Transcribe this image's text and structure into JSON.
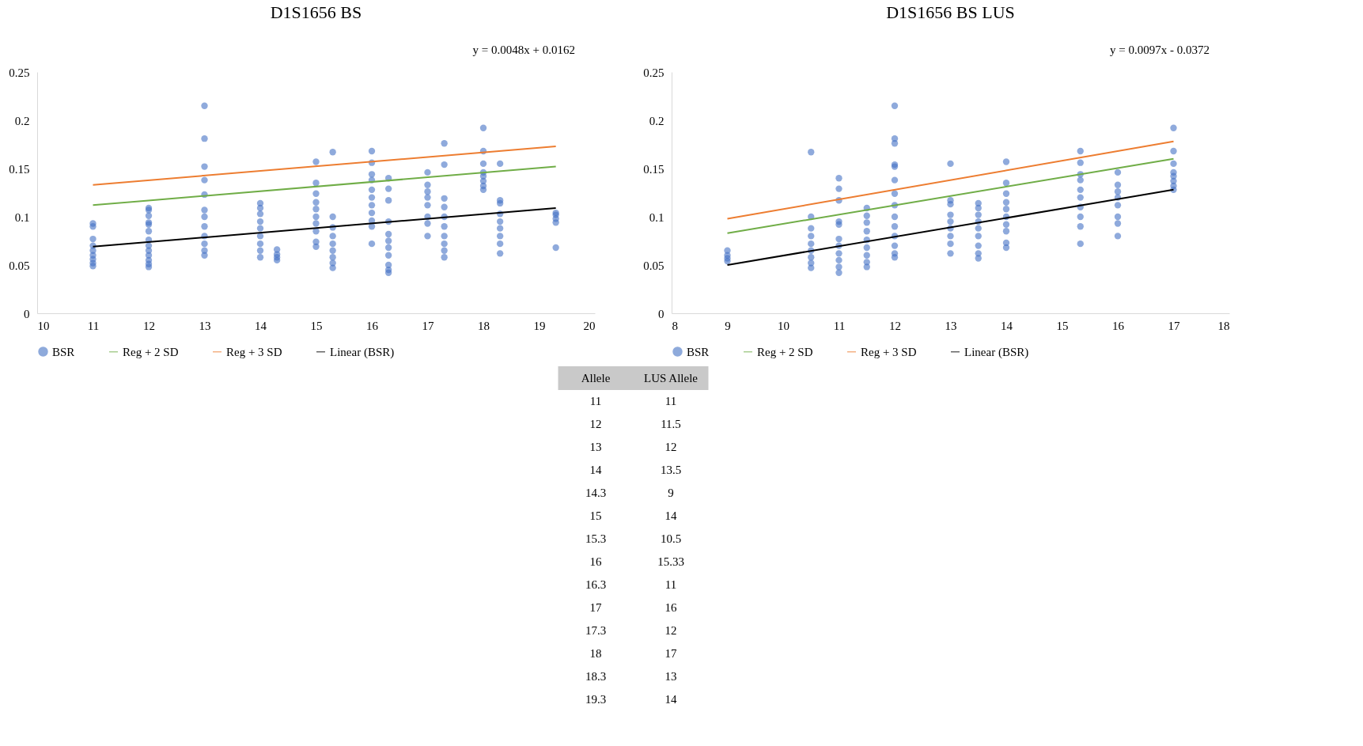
{
  "chart_data": [
    {
      "type": "scatter",
      "title": "D1S1656 BS",
      "annotations": [
        "y = 0.0048x + 0.0162"
      ],
      "xlim": [
        10,
        20
      ],
      "xticks": [
        10,
        11,
        12,
        13,
        14,
        15,
        16,
        17,
        18,
        19,
        20
      ],
      "ylim": [
        0,
        0.25
      ],
      "yticks": [
        0,
        0.05,
        0.1,
        0.15,
        0.2,
        0.25
      ],
      "legend": "bottom",
      "series": [
        {
          "name": "BSR",
          "type": "scatter",
          "marker": "circle",
          "color": "#4472c4",
          "x": [
            11,
            11,
            11,
            11,
            11,
            11,
            11,
            11,
            11,
            12,
            12,
            12,
            12,
            12,
            12,
            12,
            12,
            12,
            12,
            12,
            12,
            12,
            13,
            13,
            13,
            13,
            13,
            13,
            13,
            13,
            13,
            13,
            13,
            13,
            14,
            14,
            14,
            14,
            14,
            14,
            14,
            14,
            14,
            14.3,
            14.3,
            14.3,
            14.3,
            15,
            15,
            15,
            15,
            15,
            15,
            15,
            15,
            15,
            15,
            15.3,
            15.3,
            15.3,
            15.3,
            15.3,
            15.3,
            15.3,
            15.3,
            15.3,
            16,
            16,
            16,
            16,
            16,
            16,
            16,
            16,
            16,
            16,
            16,
            16.3,
            16.3,
            16.3,
            16.3,
            16.3,
            16.3,
            16.3,
            16.3,
            16.3,
            16.3,
            16.3,
            17,
            17,
            17,
            17,
            17,
            17,
            17,
            17,
            17.3,
            17.3,
            17.3,
            17.3,
            17.3,
            17.3,
            17.3,
            17.3,
            17.3,
            17.3,
            18,
            18,
            18,
            18,
            18,
            18,
            18,
            18,
            18.3,
            18.3,
            18.3,
            18.3,
            18.3,
            18.3,
            18.3,
            18.3,
            18.3,
            19.3,
            19.3,
            19.3,
            19.3,
            19.3
          ],
          "values": [
            0.093,
            0.09,
            0.077,
            0.07,
            0.065,
            0.06,
            0.056,
            0.052,
            0.049,
            0.109,
            0.107,
            0.101,
            0.094,
            0.092,
            0.085,
            0.076,
            0.07,
            0.065,
            0.06,
            0.055,
            0.051,
            0.048,
            0.215,
            0.181,
            0.152,
            0.138,
            0.123,
            0.107,
            0.1,
            0.09,
            0.08,
            0.072,
            0.065,
            0.06,
            0.114,
            0.109,
            0.103,
            0.095,
            0.088,
            0.08,
            0.072,
            0.065,
            0.058,
            0.066,
            0.061,
            0.058,
            0.055,
            0.157,
            0.135,
            0.124,
            0.115,
            0.108,
            0.1,
            0.093,
            0.085,
            0.074,
            0.069,
            0.167,
            0.1,
            0.089,
            0.08,
            0.072,
            0.065,
            0.058,
            0.052,
            0.047,
            0.168,
            0.156,
            0.144,
            0.138,
            0.128,
            0.12,
            0.112,
            0.104,
            0.096,
            0.09,
            0.072,
            0.14,
            0.129,
            0.117,
            0.095,
            0.082,
            0.075,
            0.068,
            0.06,
            0.05,
            0.045,
            0.042,
            0.146,
            0.133,
            0.126,
            0.12,
            0.112,
            0.1,
            0.093,
            0.08,
            0.176,
            0.154,
            0.119,
            0.11,
            0.1,
            0.09,
            0.08,
            0.072,
            0.065,
            0.058,
            0.192,
            0.168,
            0.155,
            0.146,
            0.142,
            0.137,
            0.132,
            0.128,
            0.155,
            0.117,
            0.114,
            0.103,
            0.095,
            0.088,
            0.08,
            0.072,
            0.062,
            0.104,
            0.102,
            0.098,
            0.094,
            0.068
          ]
        },
        {
          "name": "Reg + 2 SD",
          "type": "line",
          "marker": "none",
          "color": "#70ad47",
          "x": [
            11,
            19.3
          ],
          "values": [
            0.112,
            0.152
          ]
        },
        {
          "name": "Reg + 3 SD",
          "type": "line",
          "marker": "none",
          "color": "#ed7d31",
          "x": [
            11,
            19.3
          ],
          "values": [
            0.133,
            0.173
          ]
        },
        {
          "name": "Linear (BSR)",
          "type": "line",
          "marker": "none",
          "color": "#000000",
          "x": [
            11,
            19.3
          ],
          "values": [
            0.069,
            0.109
          ]
        }
      ]
    },
    {
      "type": "scatter",
      "title": "D1S1656 BS LUS",
      "annotations": [
        "y = 0.0097x  - 0.0372"
      ],
      "xlim": [
        8,
        18
      ],
      "xticks": [
        8,
        9,
        10,
        11,
        12,
        13,
        14,
        15,
        16,
        17,
        18
      ],
      "ylim": [
        0,
        0.25
      ],
      "yticks": [
        0,
        0.05,
        0.1,
        0.15,
        0.2,
        0.25
      ],
      "legend": "bottom",
      "series": [
        {
          "name": "BSR",
          "type": "scatter",
          "marker": "circle",
          "color": "#4472c4",
          "x": [
            9,
            9,
            9,
            9,
            10.5,
            10.5,
            10.5,
            10.5,
            10.5,
            10.5,
            10.5,
            10.5,
            10.5,
            11,
            11,
            11,
            11,
            11,
            11,
            11,
            11,
            11,
            11,
            11,
            11.5,
            11.5,
            11.5,
            11.5,
            11.5,
            11.5,
            11.5,
            11.5,
            11.5,
            12,
            12,
            12,
            12,
            12,
            12,
            12,
            12,
            12,
            12,
            12,
            12,
            12,
            12,
            13,
            13,
            13,
            13,
            13,
            13,
            13,
            13,
            13,
            13.5,
            13.5,
            13.5,
            13.5,
            13.5,
            13.5,
            13.5,
            13.5,
            13.5,
            14,
            14,
            14,
            14,
            14,
            14,
            14,
            14,
            14,
            14,
            15.33,
            15.33,
            15.33,
            15.33,
            15.33,
            15.33,
            15.33,
            15.33,
            15.33,
            15.33,
            16,
            16,
            16,
            16,
            16,
            16,
            16,
            16,
            17,
            17,
            17,
            17,
            17,
            17,
            17,
            17
          ],
          "values": [
            0.065,
            0.06,
            0.057,
            0.054,
            0.167,
            0.1,
            0.088,
            0.08,
            0.072,
            0.065,
            0.058,
            0.052,
            0.047,
            0.14,
            0.129,
            0.117,
            0.095,
            0.092,
            0.077,
            0.07,
            0.062,
            0.055,
            0.048,
            0.042,
            0.109,
            0.101,
            0.094,
            0.085,
            0.076,
            0.068,
            0.06,
            0.053,
            0.048,
            0.215,
            0.181,
            0.176,
            0.154,
            0.152,
            0.138,
            0.124,
            0.112,
            0.1,
            0.09,
            0.08,
            0.07,
            0.062,
            0.058,
            0.155,
            0.117,
            0.113,
            0.102,
            0.095,
            0.088,
            0.08,
            0.072,
            0.062,
            0.114,
            0.109,
            0.102,
            0.095,
            0.088,
            0.08,
            0.07,
            0.062,
            0.057,
            0.157,
            0.135,
            0.124,
            0.115,
            0.108,
            0.1,
            0.092,
            0.085,
            0.073,
            0.068,
            0.168,
            0.156,
            0.144,
            0.138,
            0.128,
            0.12,
            0.11,
            0.1,
            0.09,
            0.072,
            0.146,
            0.133,
            0.126,
            0.12,
            0.112,
            0.1,
            0.093,
            0.08,
            0.192,
            0.168,
            0.155,
            0.146,
            0.142,
            0.137,
            0.132,
            0.128
          ]
        },
        {
          "name": "Reg + 2 SD",
          "type": "line",
          "marker": "none",
          "color": "#70ad47",
          "x": [
            9,
            17
          ],
          "values": [
            0.083,
            0.16
          ]
        },
        {
          "name": "Reg + 3 SD",
          "type": "line",
          "marker": "none",
          "color": "#ed7d31",
          "x": [
            9,
            17
          ],
          "values": [
            0.098,
            0.178
          ]
        },
        {
          "name": "Linear (BSR)",
          "type": "line",
          "marker": "none",
          "color": "#000000",
          "x": [
            9,
            17
          ],
          "values": [
            0.05,
            0.128
          ]
        }
      ]
    },
    {
      "type": "other",
      "categories": [
        "Allele",
        "LUS Allele"
      ],
      "annotations": [
        "11",
        "11",
        "12",
        "11.5",
        "13",
        "12",
        "14",
        "13.5",
        "14.3",
        "9",
        "15",
        "14",
        "15.3",
        "10.5",
        "16",
        "15.33",
        "16.3",
        "11",
        "17",
        "16",
        "17.3",
        "12",
        "18",
        "17",
        "18.3",
        "13",
        "19.3",
        "14"
      ]
    }
  ]
}
